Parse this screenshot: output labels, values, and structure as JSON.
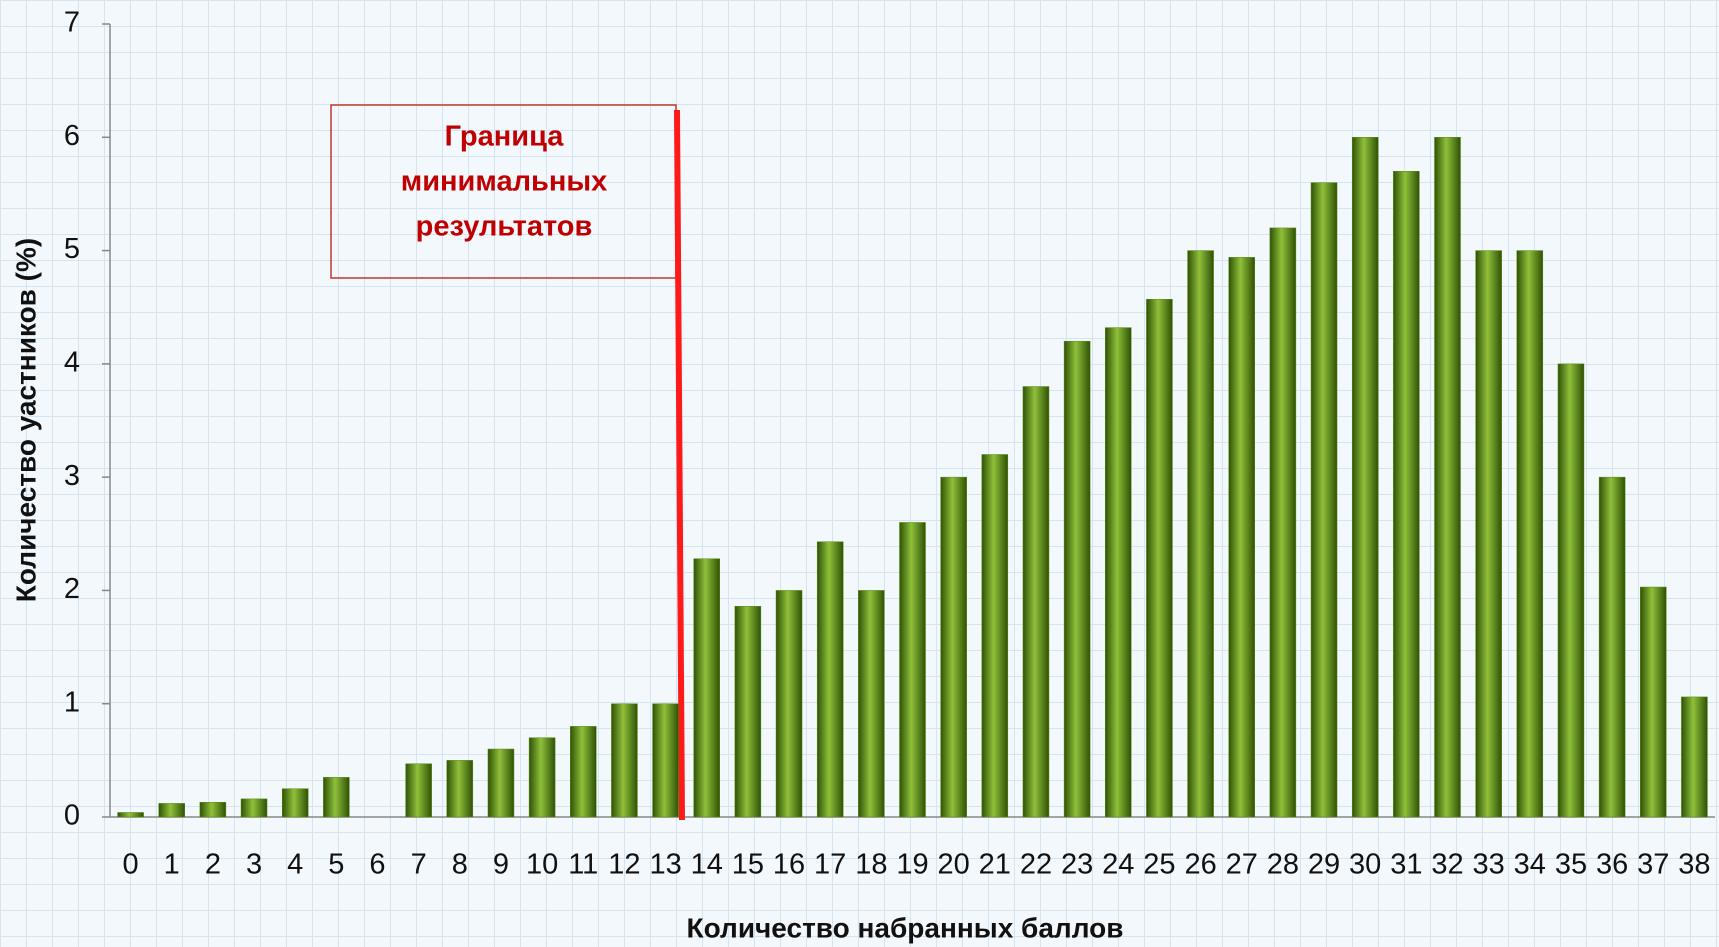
{
  "chart_data": {
    "type": "bar",
    "x_label": "Количество набранных баллов",
    "y_label": "Количество уастников (%)",
    "annotation": [
      "Граница",
      "минимальных",
      "результатов"
    ],
    "categories": [
      "0",
      "1",
      "2",
      "3",
      "4",
      "5",
      "6",
      "7",
      "8",
      "9",
      "10",
      "11",
      "12",
      "13",
      "14",
      "15",
      "16",
      "17",
      "18",
      "19",
      "20",
      "21",
      "22",
      "23",
      "24",
      "25",
      "26",
      "27",
      "28",
      "29",
      "30",
      "31",
      "32",
      "33",
      "34",
      "35",
      "36",
      "37",
      "38"
    ],
    "values": [
      0.04,
      0.12,
      0.13,
      0.16,
      0.25,
      0.35,
      0,
      0.47,
      0.5,
      0.6,
      0.7,
      0.8,
      1.0,
      1.0,
      2.28,
      1.86,
      2.0,
      2.43,
      2.0,
      2.6,
      3.0,
      3.2,
      3.8,
      4.2,
      4.32,
      4.57,
      5.0,
      4.94,
      5.2,
      5.6,
      6.0,
      5.7,
      6.0,
      5.0,
      5.0,
      4.0,
      3.0,
      2.03,
      1.06
    ],
    "color": "#5a8a10",
    "ylim": [
      0,
      7
    ],
    "yticks": [
      0,
      1,
      2,
      3,
      4,
      5,
      6,
      7
    ]
  }
}
